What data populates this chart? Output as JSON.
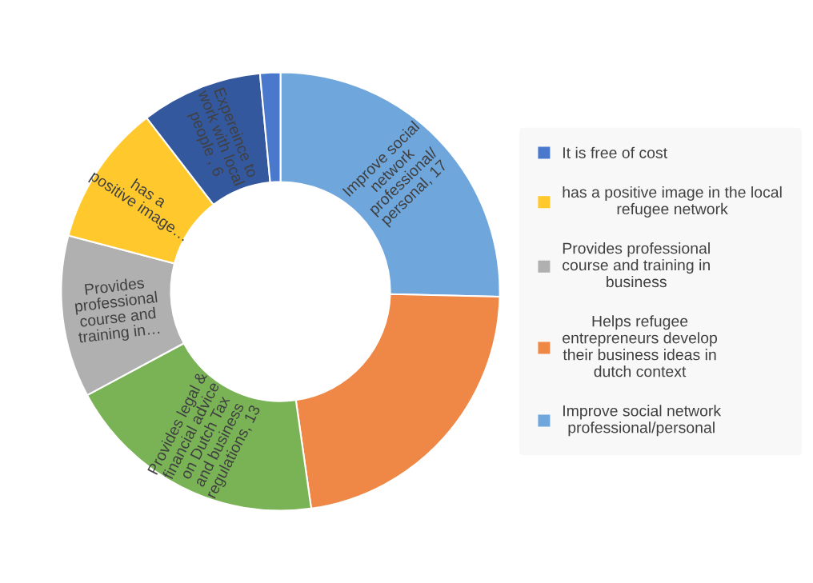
{
  "chart_data": {
    "type": "donut",
    "categories": [
      "Improve social network\nprofessional/personal",
      "Helps refugee\nentrepreneurs develop\ntheir business ideas in\ndutch context",
      null,
      "Provides professional\ncourse and training in\nbusiness",
      "has a positive image in the local\nrefugee network",
      null,
      "It is free of cost"
    ],
    "values": [
      17,
      15,
      13,
      8,
      7,
      6,
      1
    ],
    "colors": [
      "#6fa6dc",
      "#ef8846",
      "#7ab356",
      "#b0b0b0",
      "#ffc92e",
      "#34589e",
      "#4a78cc"
    ],
    "value_labels": [
      "Improve social\nnetwork\nprofessional/\npersonal, 17",
      null,
      "Provides legal &\nfinancial advice\non Dutch Tax\nand business\nregulations, 13",
      "Provides\nprofessional\ncourse and\ntraining in…",
      "has a\npositive image…",
      "Expereince to\nwork with local\npeople , 6",
      null
    ],
    "legend": "right"
  }
}
